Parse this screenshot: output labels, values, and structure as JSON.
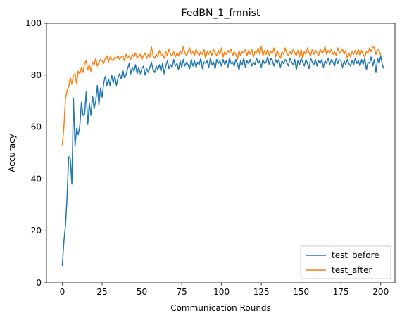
{
  "chart_data": {
    "type": "line",
    "title": "FedBN_1_fmnist",
    "xlabel": "Communication Rounds",
    "ylabel": "Accuracy",
    "xlim": [
      -9.95,
      208.95
    ],
    "ylim": [
      0,
      100
    ],
    "xticks": [
      0,
      25,
      50,
      75,
      100,
      125,
      150,
      175,
      200
    ],
    "yticks": [
      0,
      20,
      40,
      60,
      80,
      100
    ],
    "grid": false,
    "legend_position": "lower-right",
    "series": [
      {
        "name": "test_before",
        "color": "#1f77b4",
        "x_start": 0,
        "x_step": 1,
        "values": [
          6.5,
          16.0,
          22.0,
          33.0,
          48.5,
          48.0,
          38.0,
          71.0,
          52.5,
          59.5,
          57.0,
          60.5,
          69.5,
          64.5,
          65.0,
          73.5,
          61.0,
          69.0,
          64.5,
          72.0,
          67.0,
          70.0,
          76.0,
          68.5,
          75.0,
          71.5,
          77.0,
          79.5,
          76.0,
          78.5,
          76.0,
          80.0,
          77.0,
          79.5,
          76.0,
          79.0,
          80.5,
          78.5,
          82.0,
          79.0,
          80.0,
          82.5,
          84.5,
          80.5,
          83.0,
          81.5,
          84.0,
          80.5,
          83.0,
          80.5,
          82.5,
          83.5,
          80.0,
          82.5,
          81.0,
          83.0,
          85.0,
          82.0,
          81.0,
          83.5,
          82.0,
          84.0,
          81.5,
          84.5,
          80.5,
          83.5,
          85.5,
          82.5,
          84.0,
          83.0,
          86.0,
          83.5,
          84.5,
          82.0,
          85.5,
          83.0,
          86.0,
          83.5,
          85.0,
          84.0,
          82.5,
          86.0,
          83.5,
          85.5,
          83.0,
          85.0,
          84.0,
          86.5,
          82.5,
          85.0,
          84.5,
          85.5,
          83.0,
          86.5,
          84.0,
          85.0,
          82.5,
          86.0,
          84.5,
          85.5,
          83.5,
          86.0,
          84.0,
          85.5,
          83.0,
          86.5,
          84.5,
          85.0,
          83.5,
          86.0,
          84.5,
          82.0,
          85.5,
          84.0,
          86.5,
          83.0,
          85.5,
          84.5,
          86.0,
          83.5,
          85.0,
          84.0,
          86.5,
          84.5,
          85.5,
          83.0,
          86.0,
          84.5,
          85.0,
          87.0,
          84.0,
          86.5,
          85.5,
          83.5,
          86.0,
          84.5,
          86.0,
          83.0,
          85.5,
          84.5,
          86.0,
          85.0,
          83.5,
          86.5,
          85.0,
          84.0,
          86.0,
          82.0,
          85.5,
          84.0,
          86.5,
          85.0,
          83.5,
          86.0,
          84.5,
          82.5,
          86.5,
          85.0,
          84.0,
          86.0,
          83.5,
          85.5,
          84.5,
          86.0,
          83.0,
          85.5,
          84.5,
          86.5,
          84.0,
          86.0,
          85.0,
          83.5,
          86.5,
          84.5,
          86.0,
          85.5,
          83.0,
          85.5,
          84.0,
          86.0,
          84.5,
          83.5,
          85.5,
          84.0,
          86.5,
          84.5,
          85.5,
          83.5,
          86.0,
          84.0,
          86.5,
          82.0,
          85.0,
          84.5,
          87.0,
          83.5,
          86.0,
          81.0,
          86.5,
          84.5,
          87.5,
          84.0,
          82.5
        ]
      },
      {
        "name": "test_after",
        "color": "#ff7f0e",
        "x_start": 0,
        "x_step": 1,
        "values": [
          53.0,
          60.0,
          71.0,
          74.0,
          75.5,
          79.0,
          76.5,
          80.0,
          80.5,
          76.5,
          81.5,
          80.5,
          83.0,
          81.0,
          84.5,
          85.5,
          82.0,
          84.0,
          81.5,
          85.0,
          84.0,
          86.5,
          83.5,
          85.0,
          86.0,
          85.5,
          84.5,
          86.5,
          87.5,
          85.0,
          87.0,
          86.0,
          85.5,
          87.0,
          86.5,
          87.5,
          86.0,
          87.0,
          87.5,
          85.5,
          88.0,
          86.5,
          87.5,
          86.0,
          88.0,
          87.0,
          88.5,
          86.5,
          87.5,
          88.0,
          86.0,
          87.5,
          88.5,
          86.5,
          88.0,
          87.0,
          91.0,
          87.5,
          86.5,
          88.0,
          87.0,
          89.5,
          87.5,
          88.0,
          86.5,
          89.0,
          87.5,
          90.0,
          88.0,
          87.5,
          89.0,
          87.0,
          88.5,
          87.5,
          89.5,
          88.0,
          91.0,
          88.5,
          87.5,
          89.0,
          90.5,
          88.0,
          89.0,
          87.5,
          90.0,
          88.5,
          87.5,
          89.0,
          88.0,
          90.0,
          86.5,
          89.0,
          88.0,
          89.5,
          87.5,
          90.0,
          88.5,
          87.5,
          89.5,
          88.0,
          90.5,
          87.0,
          89.0,
          88.0,
          89.5,
          88.5,
          90.0,
          87.5,
          89.0,
          88.0,
          86.0,
          89.5,
          87.5,
          89.0,
          88.5,
          90.0,
          87.5,
          89.5,
          88.0,
          90.0,
          87.0,
          89.0,
          88.5,
          90.5,
          88.0,
          91.0,
          87.5,
          89.5,
          88.0,
          90.0,
          87.5,
          89.0,
          88.5,
          90.5,
          87.0,
          89.5,
          88.0,
          86.5,
          89.0,
          88.0,
          90.5,
          88.5,
          87.5,
          89.0,
          88.0,
          90.0,
          88.5,
          87.5,
          89.5,
          87.0,
          90.0,
          86.5,
          89.0,
          88.0,
          90.5,
          88.5,
          87.5,
          90.0,
          88.0,
          89.5,
          88.5,
          87.5,
          90.0,
          88.5,
          89.0,
          91.0,
          88.0,
          89.5,
          88.5,
          90.0,
          88.0,
          89.0,
          87.5,
          90.5,
          88.5,
          89.0,
          90.0,
          88.0,
          89.5,
          86.5,
          88.5,
          87.0,
          89.0,
          88.0,
          89.5,
          88.0,
          90.0,
          87.5,
          89.5,
          88.0,
          87.0,
          89.0,
          88.5,
          90.5,
          89.0,
          91.0,
          90.5,
          88.0,
          90.0,
          89.5,
          87.5
        ]
      }
    ]
  }
}
